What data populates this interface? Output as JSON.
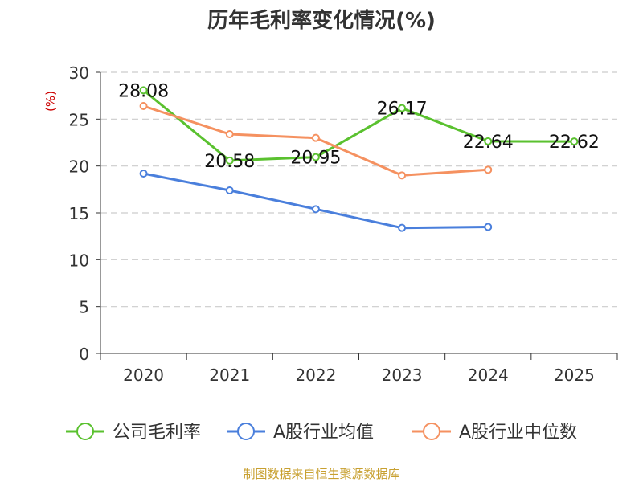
{
  "chart_data": {
    "type": "line",
    "title": "历年毛利率变化情况(%)",
    "ylabel": "(%)",
    "xlabel": "",
    "categories": [
      "2020",
      "2021",
      "2022",
      "2023",
      "2024",
      "2025"
    ],
    "ylim": [
      0,
      30
    ],
    "yticks": [
      0,
      5,
      10,
      15,
      20,
      25,
      30
    ],
    "grid": true,
    "legend_position": "bottom",
    "series": [
      {
        "name": "公司毛利率",
        "color": "#5ac12f",
        "values": [
          28.08,
          20.58,
          20.95,
          26.17,
          22.64,
          22.62
        ],
        "labels": [
          "28.08",
          "20.58",
          "20.95",
          "26.17",
          "22.64",
          "22.62"
        ]
      },
      {
        "name": "A股行业均值",
        "color": "#4a7fdc",
        "values": [
          19.2,
          17.4,
          15.4,
          13.4,
          13.5,
          null
        ]
      },
      {
        "name": "A股行业中位数",
        "color": "#f59160",
        "values": [
          26.4,
          23.4,
          23.0,
          19.0,
          19.6,
          null
        ]
      }
    ]
  },
  "source": "制图数据来自恒生聚源数据库",
  "colors": {
    "title": "#333333",
    "axis_label": "#cc0000",
    "source": "#c8a030",
    "grid": "#cccccc",
    "axis": "#333333"
  }
}
